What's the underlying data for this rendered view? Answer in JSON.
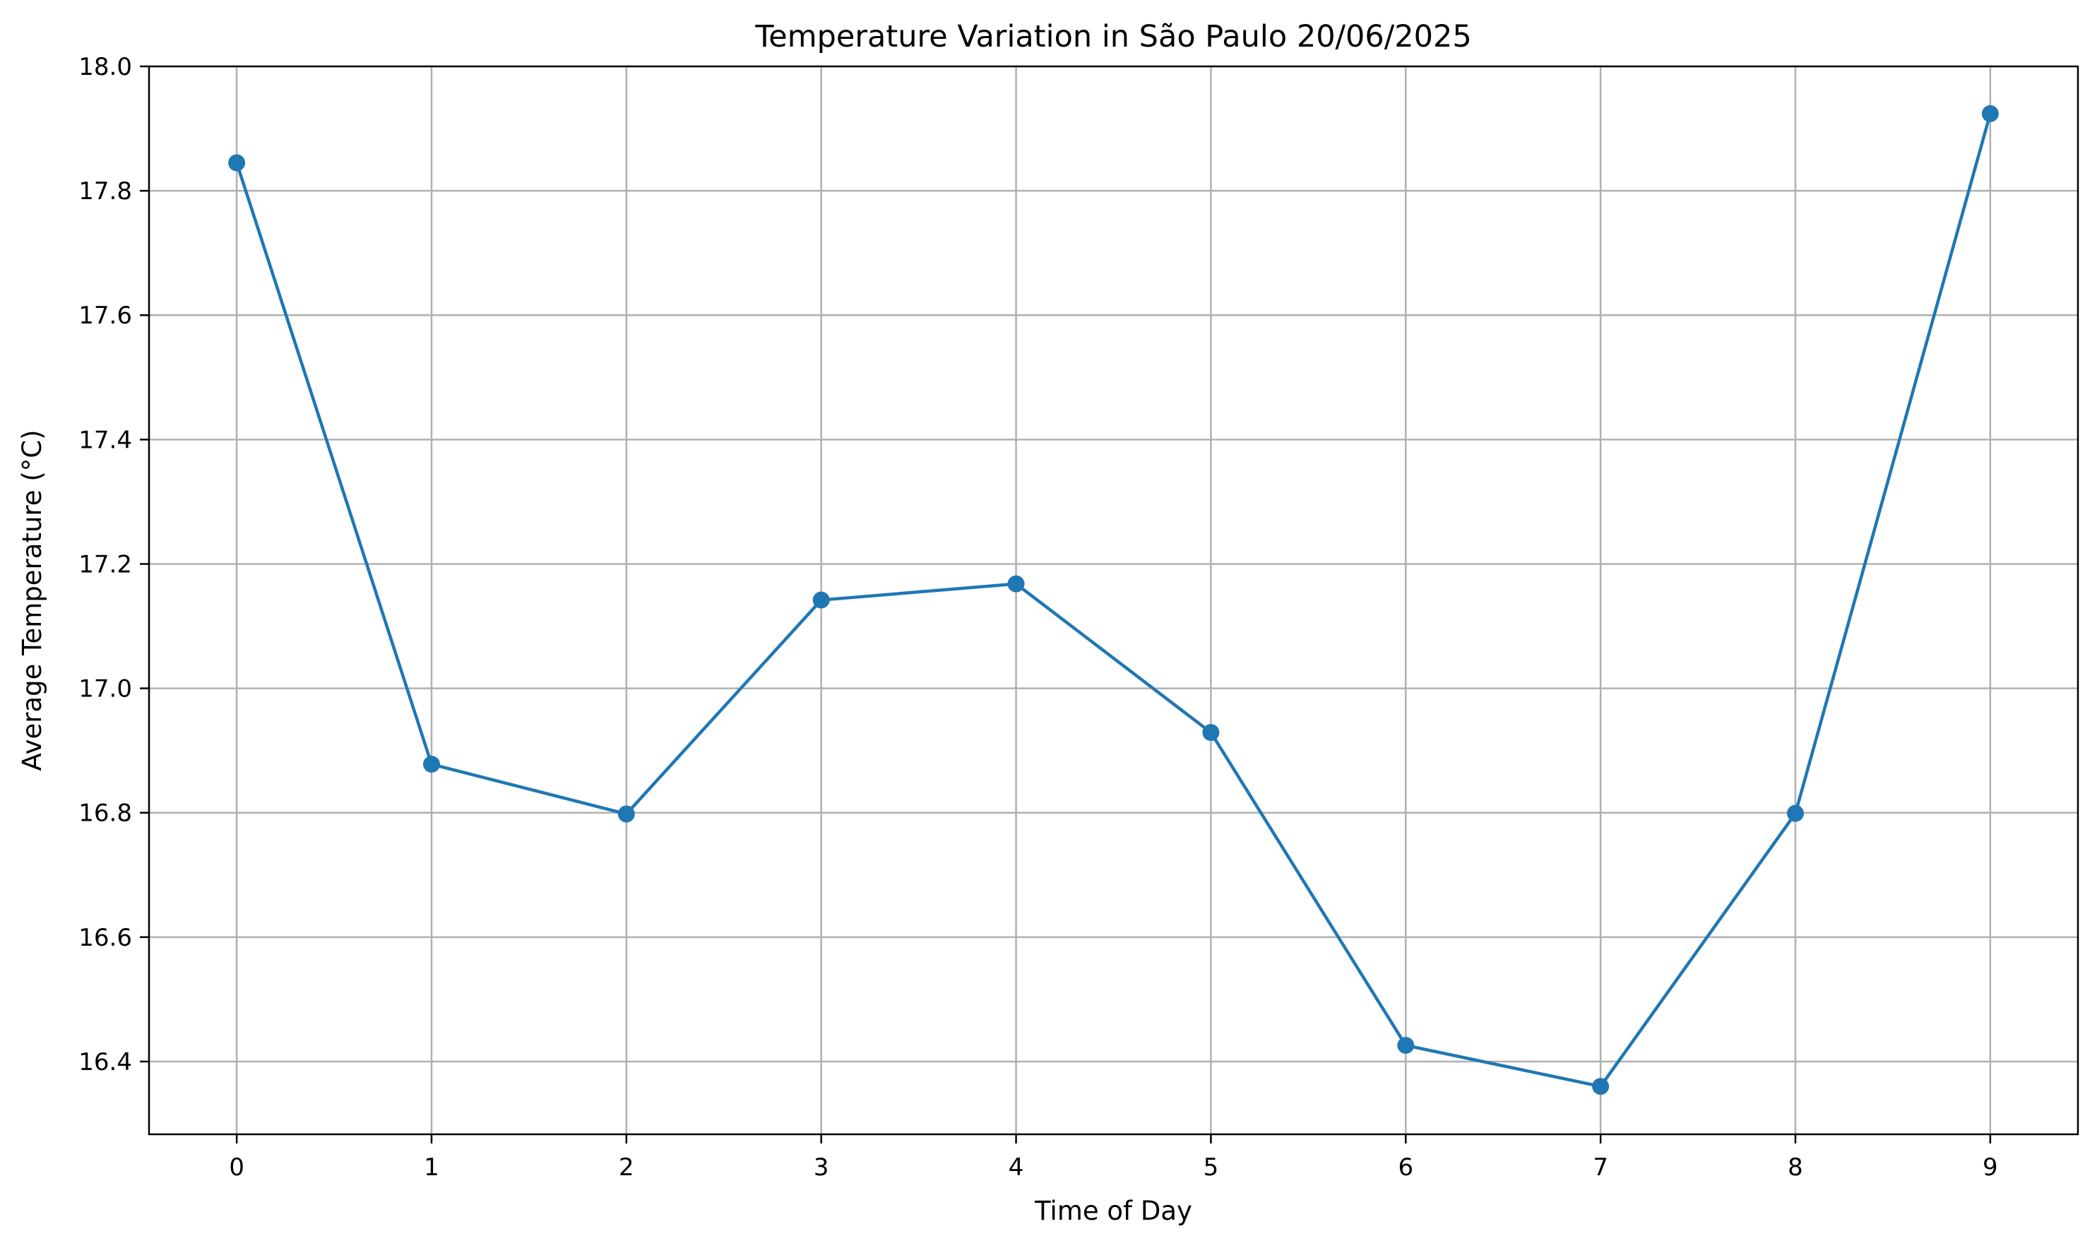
{
  "chart_data": {
    "type": "line",
    "title": "Temperature Variation in São Paulo 20/06/2025",
    "xlabel": "Time of Day",
    "ylabel": "Average Temperature (°C)",
    "x": [
      0,
      1,
      2,
      3,
      4,
      5,
      6,
      7,
      8,
      9
    ],
    "series": [
      {
        "values": [
          17.845,
          16.878,
          16.798,
          17.142,
          17.168,
          16.929,
          16.426,
          16.36,
          16.799,
          17.924
        ],
        "color": "#1f77b4",
        "marker": "circle"
      }
    ],
    "xlim": [
      -0.45,
      9.45
    ],
    "ylim": [
      16.283,
      18.0
    ],
    "xticks": [
      "0",
      "1",
      "2",
      "3",
      "4",
      "5",
      "6",
      "7",
      "8",
      "9"
    ],
    "yticks": [
      "16.4",
      "16.6",
      "16.8",
      "17.0",
      "17.2",
      "17.4",
      "17.6",
      "17.8",
      "18.0"
    ],
    "grid": true,
    "grid_color": "#b0b0b0",
    "axis_color": "#000000"
  }
}
